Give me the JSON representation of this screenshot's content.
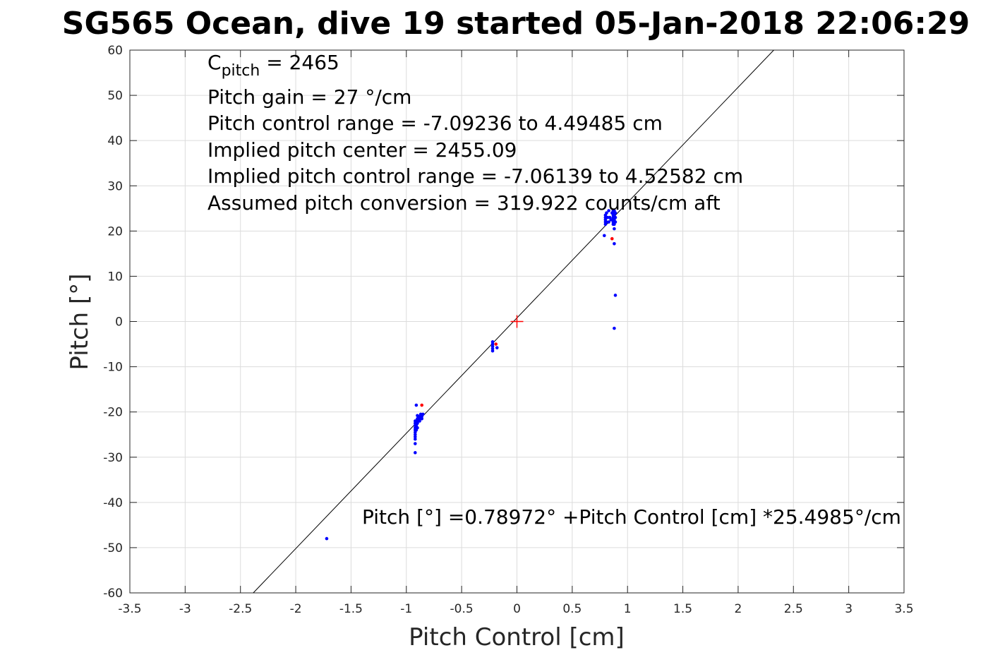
{
  "chart_data": {
    "type": "scatter",
    "title": "SG565 Ocean, dive 19 started 05-Jan-2018 22:06:29",
    "xlabel": "Pitch Control [cm]",
    "ylabel": "Pitch [°]",
    "xlim": [
      -3.5,
      3.5
    ],
    "ylim": [
      -60,
      60
    ],
    "xticks": [
      -3.5,
      -3,
      -2.5,
      -2,
      -1.5,
      -1,
      -0.5,
      0,
      0.5,
      1,
      1.5,
      2,
      2.5,
      3,
      3.5
    ],
    "xtick_labels": [
      "-3.5",
      "-3",
      "-2.5",
      "-2",
      "-1.5",
      "-1",
      "-0.5",
      "0",
      "0.5",
      "1",
      "1.5",
      "2",
      "2.5",
      "3",
      "3.5"
    ],
    "yticks": [
      -60,
      -50,
      -40,
      -30,
      -20,
      -10,
      0,
      10,
      20,
      30,
      40,
      50,
      60
    ],
    "ytick_labels": [
      "-60",
      "-50",
      "-40",
      "-30",
      "-20",
      "-10",
      "0",
      "10",
      "20",
      "30",
      "40",
      "50",
      "60"
    ],
    "grid": true,
    "fit_line": {
      "intercept": 0.78972,
      "slope": 25.4985
    },
    "center_marker": {
      "x": 0,
      "y": 0,
      "color": "#ff0000"
    },
    "annotations": {
      "c_pitch_main": "C",
      "c_pitch_sub": "pitch",
      "c_pitch_value": " = 2465",
      "line2": "Pitch gain = 27 °/cm",
      "line3": "Pitch control range = -7.09236 to 4.49485 cm",
      "line4": "Implied pitch center = 2455.09",
      "line5": "Implied pitch control range = -7.06139 to 4.52582 cm",
      "line6": "Assumed pitch conversion = 319.922 counts/cm aft",
      "fit_equation": "Pitch [°] =0.78972° +Pitch Control [cm] *25.4985°/cm"
    },
    "series": [
      {
        "color": "#0000ff",
        "points": [
          [
            -1.72,
            -48
          ],
          [
            -0.92,
            -29
          ],
          [
            -0.92,
            -27
          ],
          [
            -0.92,
            -26
          ],
          [
            -0.92,
            -25.5
          ],
          [
            -0.92,
            -25
          ],
          [
            -0.92,
            -24.5
          ],
          [
            -0.92,
            -24
          ],
          [
            -0.92,
            -23.5
          ],
          [
            -0.92,
            -23
          ],
          [
            -0.92,
            -22.5
          ],
          [
            -0.92,
            -22
          ],
          [
            -0.91,
            -24
          ],
          [
            -0.91,
            -23
          ],
          [
            -0.91,
            -22
          ],
          [
            -0.9,
            -23.5
          ],
          [
            -0.9,
            -22.5
          ],
          [
            -0.9,
            -21.5
          ],
          [
            -0.89,
            -22
          ],
          [
            -0.89,
            -21
          ],
          [
            -0.88,
            -22
          ],
          [
            -0.88,
            -21.5
          ],
          [
            -0.87,
            -21
          ],
          [
            -0.87,
            -20.5
          ],
          [
            -0.86,
            -21.5
          ],
          [
            -0.86,
            -21
          ],
          [
            -0.85,
            -20.5
          ],
          [
            -0.91,
            -18.5
          ],
          [
            -0.9,
            -20.8
          ],
          [
            -0.22,
            -4.5
          ],
          [
            -0.22,
            -5
          ],
          [
            -0.22,
            -5.5
          ],
          [
            -0.22,
            -6
          ],
          [
            -0.22,
            -6.5
          ],
          [
            -0.18,
            -5.8
          ],
          [
            0.79,
            19
          ],
          [
            0.8,
            21.5
          ],
          [
            0.8,
            22
          ],
          [
            0.8,
            22.5
          ],
          [
            0.8,
            23
          ],
          [
            0.8,
            23.5
          ],
          [
            0.81,
            22
          ],
          [
            0.81,
            24
          ],
          [
            0.82,
            23
          ],
          [
            0.83,
            22
          ],
          [
            0.83,
            24.5
          ],
          [
            0.84,
            23
          ],
          [
            0.85,
            22.5
          ],
          [
            0.86,
            24
          ],
          [
            0.87,
            21.5
          ],
          [
            0.87,
            22
          ],
          [
            0.87,
            22.5
          ],
          [
            0.87,
            23
          ],
          [
            0.87,
            23.5
          ],
          [
            0.87,
            24
          ],
          [
            0.87,
            24.5
          ],
          [
            0.88,
            21.5
          ],
          [
            0.88,
            22
          ],
          [
            0.88,
            22.5
          ],
          [
            0.88,
            23
          ],
          [
            0.88,
            23.5
          ],
          [
            0.88,
            24
          ],
          [
            0.88,
            24.5
          ],
          [
            0.89,
            22
          ],
          [
            0.89,
            23
          ],
          [
            0.89,
            24
          ],
          [
            0.88,
            20.5
          ],
          [
            0.88,
            17.2
          ],
          [
            0.89,
            5.8
          ],
          [
            0.88,
            -1.5
          ]
        ]
      },
      {
        "color": "#ff0000",
        "points": [
          [
            -0.86,
            -18.5
          ],
          [
            -0.19,
            -5
          ],
          [
            0.86,
            18.3
          ]
        ]
      }
    ]
  }
}
